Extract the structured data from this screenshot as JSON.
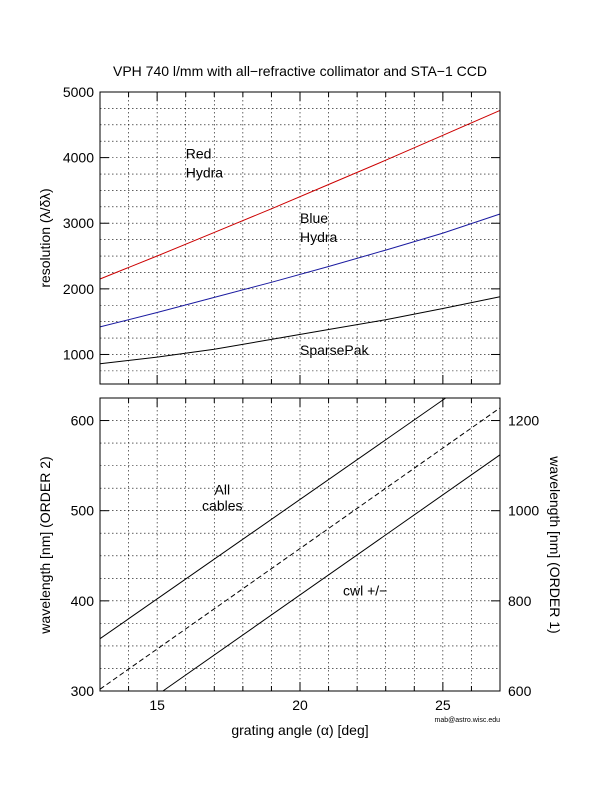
{
  "title": "VPH 740 l/mm with all−refractive collimator and STA−1 CCD",
  "credit": "mab@astro.wisc.edu",
  "xlabel": "grating angle (α) [deg]",
  "colors": {
    "red": "#cc0000",
    "blue": "#1a1aa0",
    "black": "#000000"
  },
  "chart_data": [
    {
      "type": "line",
      "ylabel": "resolution (λ/δλ)",
      "xlim": [
        13,
        27
      ],
      "ylim": [
        550,
        5000
      ],
      "yticks": [
        1000,
        2000,
        3000,
        4000,
        5000
      ],
      "xticks": [
        15,
        20,
        25
      ],
      "grid": true,
      "series": [
        {
          "name": "Red Hydra",
          "label_lines": [
            "Red",
            "Hydra"
          ],
          "color": "#cc0000",
          "style": "solid",
          "x": [
            13,
            15,
            17,
            19,
            21,
            23,
            25,
            27
          ],
          "y": [
            2150,
            2500,
            2860,
            3220,
            3590,
            3960,
            4340,
            4720
          ],
          "label_at": [
            16.0,
            3990
          ]
        },
        {
          "name": "Blue Hydra",
          "label_lines": [
            "Blue",
            "Hydra"
          ],
          "color": "#1a1aa0",
          "style": "solid",
          "x": [
            13,
            15,
            17,
            19,
            21,
            23,
            25,
            27
          ],
          "y": [
            1420,
            1640,
            1870,
            2100,
            2340,
            2590,
            2850,
            3140
          ],
          "label_at": [
            20.0,
            3000
          ]
        },
        {
          "name": "SparsePak",
          "label_lines": [
            "SparsePak"
          ],
          "color": "#000000",
          "style": "solid",
          "x": [
            13,
            15,
            17,
            19,
            21,
            23,
            25,
            27
          ],
          "y": [
            860,
            960,
            1080,
            1230,
            1380,
            1530,
            1700,
            1880
          ],
          "label_at": [
            20.0,
            990
          ]
        }
      ]
    },
    {
      "type": "line",
      "ylabel": "wavelength [nm] (ORDER 2)",
      "y2label": "wavelength [nm] (ORDER 1)",
      "xlim": [
        13,
        27
      ],
      "ylim": [
        300,
        625
      ],
      "y2lim": [
        600,
        1250
      ],
      "yticks": [
        300,
        400,
        500,
        600
      ],
      "y2ticks": [
        600,
        800,
        1000,
        1200
      ],
      "xticks": [
        15,
        20,
        25
      ],
      "grid": true,
      "annotations": [
        {
          "lines": [
            "All",
            "cables"
          ],
          "at": [
            17.0,
            518
          ]
        },
        {
          "lines": [
            "cwl +/−"
          ],
          "at": [
            22.0,
            406
          ]
        }
      ],
      "series": [
        {
          "style": "solid",
          "x": [
            13,
            25.1
          ],
          "y": [
            358,
            625
          ]
        },
        {
          "style": "dashed",
          "x": [
            13,
            27
          ],
          "y": [
            302,
            614
          ]
        },
        {
          "style": "solid",
          "x": [
            15.2,
            27
          ],
          "y": [
            300,
            562
          ]
        }
      ]
    }
  ]
}
